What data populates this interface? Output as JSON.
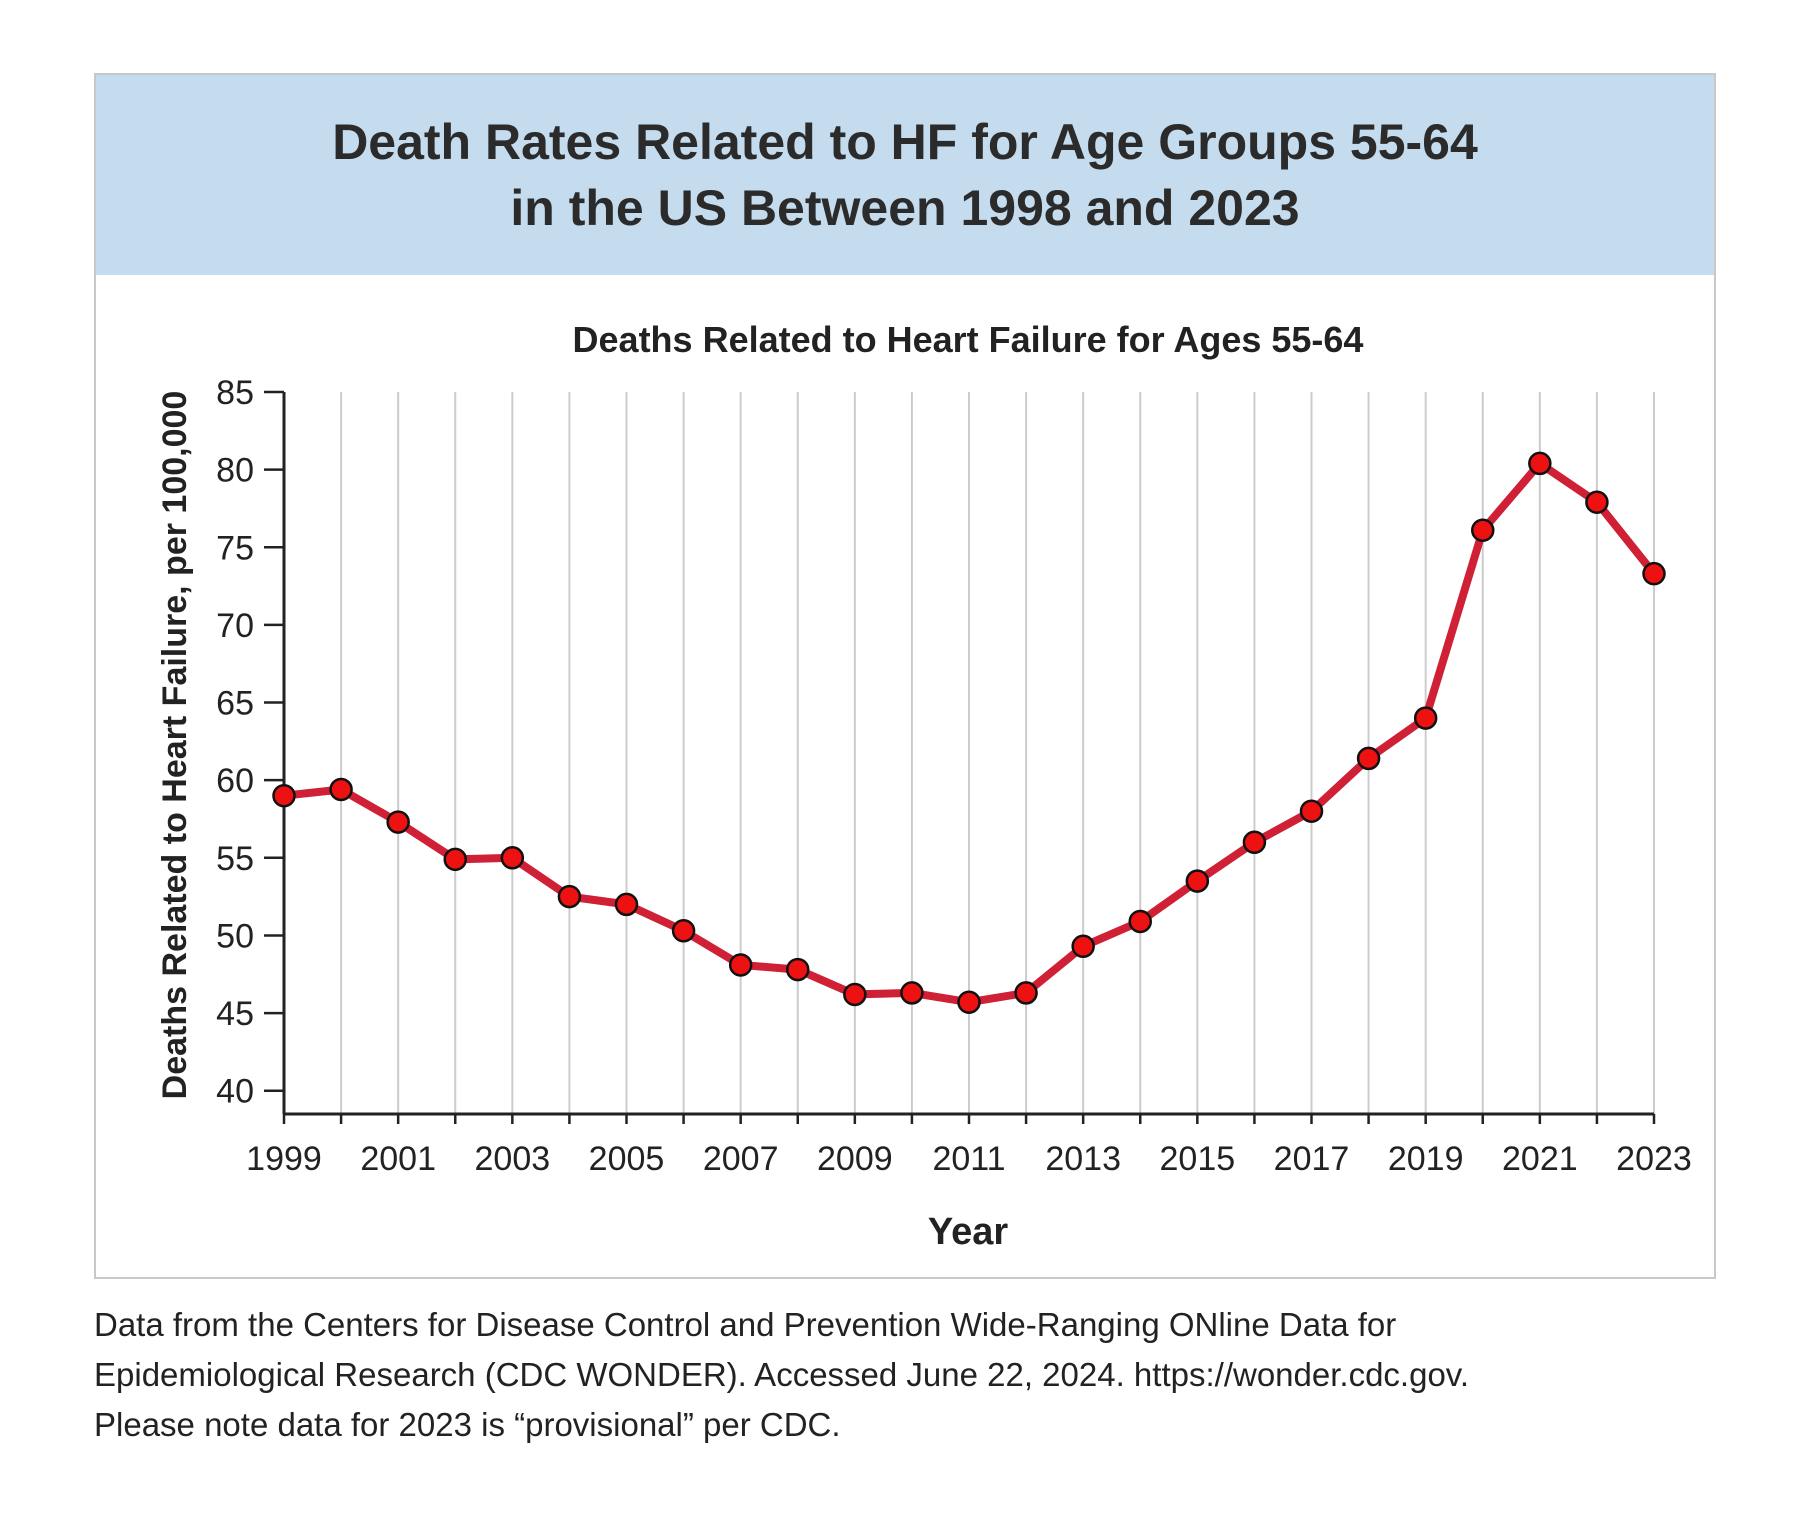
{
  "header": {
    "title": "Death Rates Related to HF for Age Groups 55-64\nin the US Between 1998 and 2023"
  },
  "chart_data": {
    "type": "line",
    "title": "Deaths Related to Heart Failure for Ages 55-64",
    "xlabel": "Year",
    "ylabel": "Deaths Related to Heart Failure, per 100,000",
    "x": [
      1999,
      2000,
      2001,
      2002,
      2003,
      2004,
      2005,
      2006,
      2007,
      2008,
      2009,
      2010,
      2011,
      2012,
      2013,
      2014,
      2015,
      2016,
      2017,
      2018,
      2019,
      2020,
      2021,
      2022,
      2023
    ],
    "series": [
      {
        "values": [
          59.0,
          59.4,
          57.3,
          54.9,
          55.0,
          52.5,
          52.0,
          50.3,
          48.1,
          47.8,
          46.2,
          46.3,
          45.7,
          46.3,
          49.3,
          50.9,
          53.5,
          56.0,
          58.0,
          61.4,
          64.0,
          76.1,
          80.4,
          77.9,
          73.3
        ]
      }
    ],
    "xticks": [
      "1999",
      "2001",
      "2003",
      "2005",
      "2007",
      "2009",
      "2011",
      "2013",
      "2015",
      "2017",
      "2019",
      "2021",
      "2023"
    ],
    "yticks": [
      "40",
      "45",
      "50",
      "55",
      "60",
      "65",
      "70",
      "75",
      "80",
      "85"
    ],
    "ylim": [
      38.5,
      85
    ],
    "grid": "vertical",
    "colors": {
      "line": "#cf2035",
      "marker": "#ee1111",
      "grid": "#cccccc",
      "axis": "#222222"
    }
  },
  "note": "Data from the Centers for Disease Control and Prevention Wide-Ranging ONline Data for\nEpidemiological Research (CDC WONDER). Accessed June 22, 2024. https://wonder.cdc.gov.\nPlease note data for 2023 is “provisional” per CDC."
}
